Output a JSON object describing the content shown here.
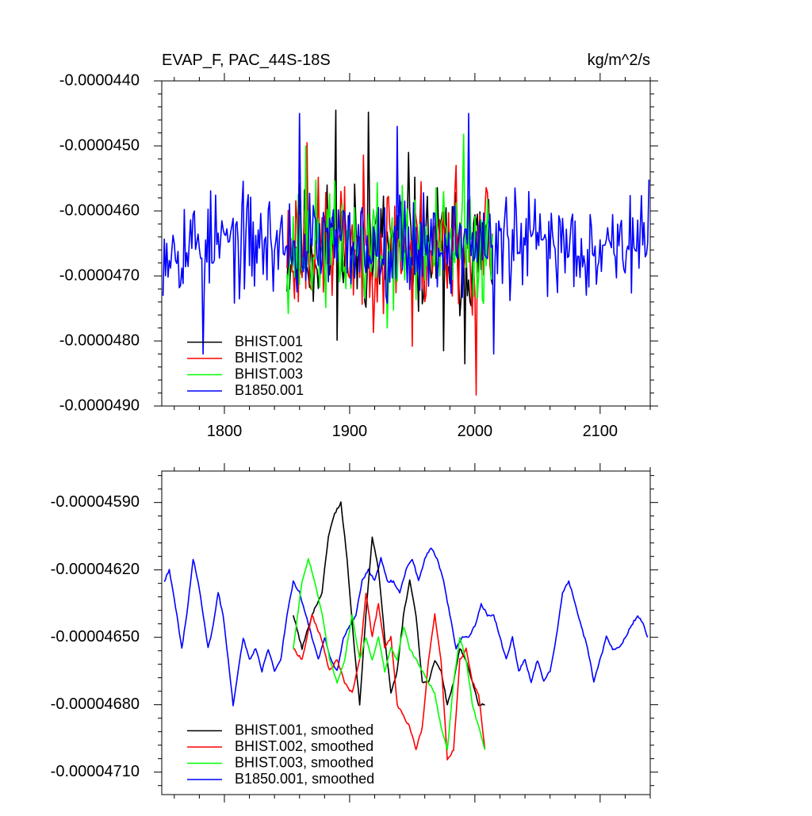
{
  "chart_data": [
    {
      "type": "line",
      "title_left": "EVAP_F, PAC_44S-18S",
      "title_right": "kg/m^2/s",
      "xlabel": "",
      "ylabel": "",
      "xlim": [
        1750,
        2140
      ],
      "ylim": [
        -4.9e-05,
        -4.4e-05
      ],
      "x_ticks": [
        1800,
        1900,
        2000,
        2100
      ],
      "x_tick_labels": [
        "1800",
        "1900",
        "2000",
        "2100"
      ],
      "y_ticks": [
        -4.4e-05,
        -4.5e-05,
        -4.6e-05,
        -4.7e-05,
        -4.8e-05,
        -4.9e-05
      ],
      "y_tick_labels": [
        "-0.0000440",
        "-0.0000450",
        "-0.0000460",
        "-0.0000470",
        "-0.0000480",
        "-0.0000490"
      ],
      "show_x_tick_labels": true,
      "legend_position": "bottom-left",
      "series": [
        {
          "name": "BHIST.001",
          "color": "#000000",
          "generator": {
            "x0": 1850,
            "x1": 2014,
            "mean": -4.66e-05,
            "amp": 9.5e-07,
            "seed": 11,
            "spikes": [
              [
                1889,
                -4.445e-05
              ],
              [
                1915,
                -4.448e-05
              ],
              [
                1975,
                -4.815e-05
              ],
              [
                1992,
                -4.835e-05
              ],
              [
                1947,
                -4.51e-05
              ]
            ]
          }
        },
        {
          "name": "BHIST.002",
          "color": "#ff0000",
          "generator": {
            "x0": 1850,
            "x1": 2014,
            "mean": -4.655e-05,
            "amp": 9.5e-07,
            "seed": 23,
            "spikes": [
              [
                1866,
                -4.495e-05
              ],
              [
                2001,
                -4.883e-05
              ],
              [
                1950,
                -4.808e-05
              ],
              [
                1985,
                -4.53e-05
              ]
            ]
          }
        },
        {
          "name": "BHIST.003",
          "color": "#00ff00",
          "generator": {
            "x0": 1850,
            "x1": 2014,
            "mean": -4.655e-05,
            "amp": 8.5e-07,
            "seed": 37,
            "spikes": [
              [
                1991,
                -4.482e-05
              ],
              [
                1865,
                -4.5e-05
              ],
              [
                1930,
                -4.78e-05
              ]
            ]
          }
        },
        {
          "name": "B1850.001",
          "color": "#0000ff",
          "generator": {
            "x0": 1751,
            "x1": 2139,
            "mean": -4.65e-05,
            "amp": 7.2e-07,
            "seed": 53,
            "spikes": [
              [
                1783,
                -4.82e-05
              ],
              [
                1860,
                -4.45e-05
              ],
              [
                1995,
                -4.45e-05
              ],
              [
                1938,
                -4.47e-05
              ],
              [
                2015,
                -4.82e-05
              ]
            ]
          }
        }
      ]
    },
    {
      "type": "line",
      "title_left": "",
      "title_right": "",
      "xlabel": "",
      "ylabel": "",
      "xlim": [
        1750,
        2140
      ],
      "ylim": [
        -4.72e-05,
        -4.576e-05
      ],
      "x_ticks": [
        1800,
        1900,
        2000,
        2100
      ],
      "x_tick_labels": [
        "1800",
        "1900",
        "2000",
        "2100"
      ],
      "y_ticks": [
        -4.59e-05,
        -4.62e-05,
        -4.65e-05,
        -4.68e-05,
        -4.71e-05
      ],
      "y_tick_labels": [
        "-0.00004590",
        "-0.00004620",
        "-0.00004650",
        "-0.00004680",
        "-0.00004710"
      ],
      "show_x_tick_labels": false,
      "legend_position": "bottom-left",
      "series": [
        {
          "name": "BHIST.001, smoothed",
          "color": "#000000",
          "anchors": [
            [
              1855,
              -4.64e-05
            ],
            [
              1862,
              -4.655e-05
            ],
            [
              1870,
              -4.64e-05
            ],
            [
              1878,
              -4.63e-05
            ],
            [
              1883,
              -4.605e-05
            ],
            [
              1888,
              -4.595e-05
            ],
            [
              1893,
              -4.59e-05
            ],
            [
              1898,
              -4.615e-05
            ],
            [
              1903,
              -4.65e-05
            ],
            [
              1908,
              -4.68e-05
            ],
            [
              1913,
              -4.64e-05
            ],
            [
              1918,
              -4.605e-05
            ],
            [
              1923,
              -4.62e-05
            ],
            [
              1928,
              -4.65e-05
            ],
            [
              1933,
              -4.675e-05
            ],
            [
              1938,
              -4.665e-05
            ],
            [
              1943,
              -4.64e-05
            ],
            [
              1948,
              -4.625e-05
            ],
            [
              1953,
              -4.64e-05
            ],
            [
              1958,
              -4.67e-05
            ],
            [
              1963,
              -4.67e-05
            ],
            [
              1968,
              -4.66e-05
            ],
            [
              1973,
              -4.665e-05
            ],
            [
              1978,
              -4.68e-05
            ],
            [
              1983,
              -4.67e-05
            ],
            [
              1988,
              -4.655e-05
            ],
            [
              1993,
              -4.66e-05
            ],
            [
              1998,
              -4.67e-05
            ],
            [
              2003,
              -4.68e-05
            ],
            [
              2008,
              -4.68e-05
            ]
          ]
        },
        {
          "name": "BHIST.002, smoothed",
          "color": "#ff0000",
          "anchors": [
            [
              1855,
              -4.655e-05
            ],
            [
              1862,
              -4.66e-05
            ],
            [
              1870,
              -4.64e-05
            ],
            [
              1877,
              -4.65e-05
            ],
            [
              1884,
              -4.665e-05
            ],
            [
              1890,
              -4.66e-05
            ],
            [
              1896,
              -4.67e-05
            ],
            [
              1902,
              -4.675e-05
            ],
            [
              1908,
              -4.66e-05
            ],
            [
              1913,
              -4.63e-05
            ],
            [
              1918,
              -4.65e-05
            ],
            [
              1923,
              -4.635e-05
            ],
            [
              1928,
              -4.655e-05
            ],
            [
              1933,
              -4.65e-05
            ],
            [
              1938,
              -4.68e-05
            ],
            [
              1943,
              -4.685e-05
            ],
            [
              1948,
              -4.69e-05
            ],
            [
              1953,
              -4.7e-05
            ],
            [
              1958,
              -4.69e-05
            ],
            [
              1963,
              -4.66e-05
            ],
            [
              1968,
              -4.64e-05
            ],
            [
              1973,
              -4.66e-05
            ],
            [
              1978,
              -4.705e-05
            ],
            [
              1983,
              -4.7e-05
            ],
            [
              1988,
              -4.66e-05
            ],
            [
              1993,
              -4.655e-05
            ],
            [
              1998,
              -4.67e-05
            ],
            [
              2003,
              -4.675e-05
            ],
            [
              2008,
              -4.7e-05
            ]
          ]
        },
        {
          "name": "BHIST.003, smoothed",
          "color": "#00ff00",
          "anchors": [
            [
              1855,
              -4.655e-05
            ],
            [
              1862,
              -4.625e-05
            ],
            [
              1867,
              -4.615e-05
            ],
            [
              1872,
              -4.625e-05
            ],
            [
              1878,
              -4.64e-05
            ],
            [
              1884,
              -4.66e-05
            ],
            [
              1890,
              -4.67e-05
            ],
            [
              1896,
              -4.66e-05
            ],
            [
              1902,
              -4.64e-05
            ],
            [
              1908,
              -4.66e-05
            ],
            [
              1913,
              -4.65e-05
            ],
            [
              1918,
              -4.66e-05
            ],
            [
              1923,
              -4.65e-05
            ],
            [
              1928,
              -4.665e-05
            ],
            [
              1933,
              -4.655e-05
            ],
            [
              1938,
              -4.66e-05
            ],
            [
              1943,
              -4.645e-05
            ],
            [
              1948,
              -4.655e-05
            ],
            [
              1953,
              -4.66e-05
            ],
            [
              1958,
              -4.665e-05
            ],
            [
              1963,
              -4.67e-05
            ],
            [
              1968,
              -4.675e-05
            ],
            [
              1973,
              -4.69e-05
            ],
            [
              1978,
              -4.7e-05
            ],
            [
              1983,
              -4.67e-05
            ],
            [
              1988,
              -4.65e-05
            ],
            [
              1993,
              -4.66e-05
            ],
            [
              1998,
              -4.68e-05
            ],
            [
              2003,
              -4.69e-05
            ],
            [
              2008,
              -4.7e-05
            ]
          ]
        },
        {
          "name": "B1850.001, smoothed",
          "color": "#0000ff",
          "anchors": [
            [
              1752,
              -4.625e-05
            ],
            [
              1756,
              -4.62e-05
            ],
            [
              1762,
              -4.64e-05
            ],
            [
              1766,
              -4.655e-05
            ],
            [
              1770,
              -4.64e-05
            ],
            [
              1775,
              -4.615e-05
            ],
            [
              1779,
              -4.625e-05
            ],
            [
              1783,
              -4.64e-05
            ],
            [
              1787,
              -4.655e-05
            ],
            [
              1791,
              -4.645e-05
            ],
            [
              1795,
              -4.63e-05
            ],
            [
              1799,
              -4.64e-05
            ],
            [
              1803,
              -4.66e-05
            ],
            [
              1807,
              -4.68e-05
            ],
            [
              1811,
              -4.665e-05
            ],
            [
              1815,
              -4.65e-05
            ],
            [
              1820,
              -4.66e-05
            ],
            [
              1825,
              -4.655e-05
            ],
            [
              1830,
              -4.665e-05
            ],
            [
              1835,
              -4.655e-05
            ],
            [
              1840,
              -4.665e-05
            ],
            [
              1845,
              -4.66e-05
            ],
            [
              1850,
              -4.64e-05
            ],
            [
              1855,
              -4.625e-05
            ],
            [
              1860,
              -4.63e-05
            ],
            [
              1865,
              -4.64e-05
            ],
            [
              1870,
              -4.65e-05
            ],
            [
              1875,
              -4.66e-05
            ],
            [
              1880,
              -4.65e-05
            ],
            [
              1885,
              -4.66e-05
            ],
            [
              1890,
              -4.665e-05
            ],
            [
              1895,
              -4.65e-05
            ],
            [
              1900,
              -4.645e-05
            ],
            [
              1905,
              -4.64e-05
            ],
            [
              1910,
              -4.625e-05
            ],
            [
              1915,
              -4.62e-05
            ],
            [
              1920,
              -4.625e-05
            ],
            [
              1925,
              -4.615e-05
            ],
            [
              1930,
              -4.625e-05
            ],
            [
              1935,
              -4.625e-05
            ],
            [
              1940,
              -4.63e-05
            ],
            [
              1945,
              -4.62e-05
            ],
            [
              1950,
              -4.615e-05
            ],
            [
              1955,
              -4.625e-05
            ],
            [
              1960,
              -4.615e-05
            ],
            [
              1965,
              -4.61e-05
            ],
            [
              1970,
              -4.615e-05
            ],
            [
              1975,
              -4.625e-05
            ],
            [
              1980,
              -4.64e-05
            ],
            [
              1985,
              -4.655e-05
            ],
            [
              1990,
              -4.65e-05
            ],
            [
              1995,
              -4.65e-05
            ],
            [
              2000,
              -4.645e-05
            ],
            [
              2005,
              -4.635e-05
            ],
            [
              2010,
              -4.64e-05
            ],
            [
              2015,
              -4.64e-05
            ],
            [
              2020,
              -4.65e-05
            ],
            [
              2025,
              -4.66e-05
            ],
            [
              2030,
              -4.65e-05
            ],
            [
              2035,
              -4.665e-05
            ],
            [
              2040,
              -4.66e-05
            ],
            [
              2045,
              -4.67e-05
            ],
            [
              2050,
              -4.66e-05
            ],
            [
              2055,
              -4.67e-05
            ],
            [
              2060,
              -4.665e-05
            ],
            [
              2065,
              -4.65e-05
            ],
            [
              2070,
              -4.63e-05
            ],
            [
              2075,
              -4.625e-05
            ],
            [
              2080,
              -4.635e-05
            ],
            [
              2085,
              -4.645e-05
            ],
            [
              2090,
              -4.655e-05
            ],
            [
              2095,
              -4.67e-05
            ],
            [
              2100,
              -4.66e-05
            ],
            [
              2105,
              -4.65e-05
            ],
            [
              2110,
              -4.655e-05
            ],
            [
              2115,
              -4.655e-05
            ],
            [
              2120,
              -4.65e-05
            ],
            [
              2125,
              -4.645e-05
            ],
            [
              2130,
              -4.64e-05
            ],
            [
              2135,
              -4.645e-05
            ],
            [
              2138,
              -4.65e-05
            ]
          ]
        }
      ]
    }
  ]
}
